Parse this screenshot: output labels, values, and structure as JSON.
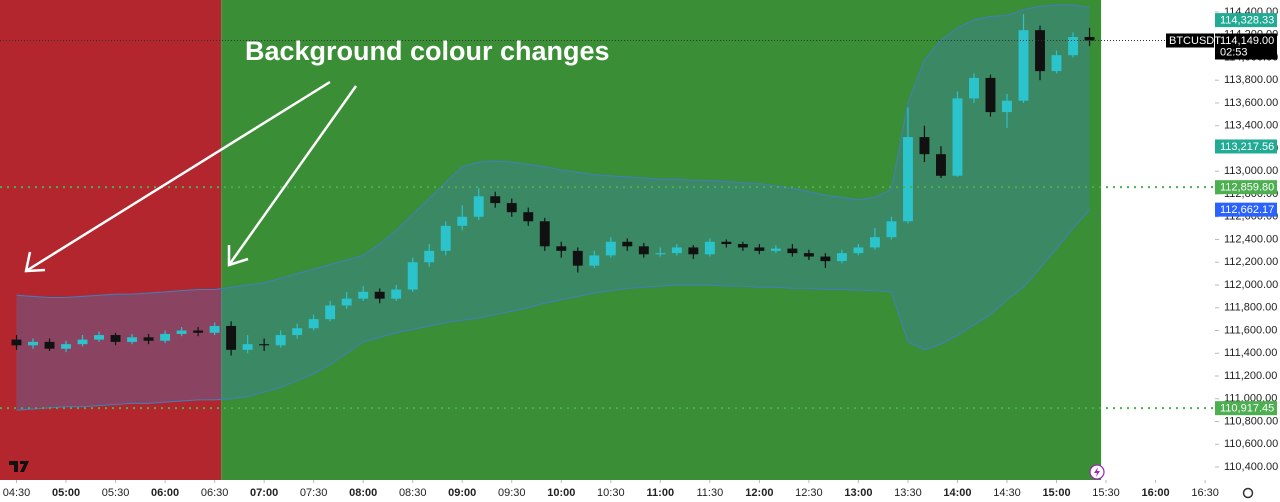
{
  "chart_data": {
    "type": "candlestick",
    "annotation": "Background colour changes",
    "symbol": "BTCUSDT",
    "countdown": "02:53",
    "up_color": "#2bc4cc",
    "down_color": "#111111",
    "xlim": [
      260,
      996
    ],
    "ylim": [
      110286,
      114505
    ],
    "x": [
      270,
      280,
      290,
      300,
      310,
      320,
      330,
      340,
      350,
      360,
      370,
      380,
      390,
      400,
      410,
      420,
      430,
      440,
      450,
      460,
      470,
      480,
      490,
      500,
      510,
      520,
      530,
      540,
      550,
      560,
      570,
      580,
      590,
      600,
      610,
      620,
      630,
      640,
      650,
      660,
      670,
      680,
      690,
      700,
      710,
      720,
      730,
      740,
      750,
      760,
      770,
      780,
      790,
      800,
      810,
      820,
      830,
      840,
      850,
      860,
      870,
      880,
      890,
      900,
      910,
      920
    ],
    "open": [
      111520,
      111470,
      111500,
      111440,
      111480,
      111520,
      111560,
      111500,
      111540,
      111510,
      111570,
      111600,
      111580,
      111640,
      111430,
      111480,
      111470,
      111560,
      111620,
      111700,
      111820,
      111880,
      111940,
      111880,
      111960,
      112200,
      112300,
      112520,
      112600,
      112780,
      112720,
      112640,
      112560,
      112340,
      112300,
      112170,
      112260,
      112380,
      112340,
      112270,
      112280,
      112330,
      112270,
      112380,
      112360,
      112330,
      112300,
      112320,
      112280,
      112250,
      112210,
      112280,
      112330,
      112420,
      112560,
      113300,
      113150,
      112960,
      113640,
      113820,
      113520,
      113620,
      114240,
      113880,
      114020,
      114180
    ],
    "high": [
      111560,
      111530,
      111530,
      111510,
      111560,
      111590,
      111580,
      111570,
      111570,
      111600,
      111630,
      111630,
      111670,
      111680,
      111560,
      111530,
      111600,
      111660,
      111740,
      111860,
      111940,
      111990,
      111970,
      112000,
      112240,
      112360,
      112560,
      112700,
      112850,
      112820,
      112760,
      112680,
      112590,
      112380,
      112330,
      112300,
      112420,
      112410,
      112370,
      112330,
      112360,
      112350,
      112410,
      112400,
      112380,
      112360,
      112350,
      112360,
      112310,
      112280,
      112310,
      112360,
      112500,
      112600,
      113560,
      113400,
      113220,
      113700,
      113860,
      113850,
      113680,
      114380,
      114280,
      114060,
      114220,
      114260
    ],
    "low": [
      111430,
      111440,
      111420,
      111410,
      111460,
      111500,
      111470,
      111480,
      111480,
      111490,
      111550,
      111550,
      111560,
      111380,
      111400,
      111420,
      111450,
      111530,
      111600,
      111680,
      111790,
      111860,
      111840,
      111860,
      111940,
      112160,
      112260,
      112480,
      112570,
      112680,
      112600,
      112520,
      112300,
      112240,
      112110,
      112150,
      112240,
      112300,
      112240,
      112250,
      112260,
      112230,
      112250,
      112330,
      112300,
      112270,
      112280,
      112250,
      112220,
      112150,
      112190,
      112260,
      112310,
      112400,
      112540,
      113080,
      112940,
      112950,
      113600,
      113480,
      113380,
      113600,
      113800,
      113860,
      114000,
      114100
    ],
    "close": [
      111470,
      111500,
      111440,
      111480,
      111520,
      111560,
      111500,
      111540,
      111510,
      111570,
      111600,
      111580,
      111640,
      111430,
      111480,
      111470,
      111560,
      111620,
      111700,
      111820,
      111880,
      111940,
      111880,
      111960,
      112200,
      112300,
      112520,
      112600,
      112780,
      112720,
      112640,
      112560,
      112340,
      112300,
      112170,
      112260,
      112380,
      112340,
      112270,
      112280,
      112330,
      112270,
      112380,
      112360,
      112330,
      112300,
      112320,
      112280,
      112250,
      112210,
      112280,
      112330,
      112420,
      112560,
      113300,
      113150,
      112960,
      113640,
      113820,
      113520,
      113620,
      114240,
      113880,
      114020,
      114180,
      114149
    ],
    "bands": {
      "color": "#3f7fbf",
      "upper": [
        111910,
        111900,
        111890,
        111890,
        111900,
        111910,
        111920,
        111920,
        111930,
        111940,
        111950,
        111960,
        111960,
        111980,
        112000,
        112020,
        112060,
        112100,
        112140,
        112180,
        112220,
        112260,
        112360,
        112480,
        112620,
        112760,
        112900,
        113040,
        113080,
        113090,
        113080,
        113060,
        113040,
        113010,
        112990,
        112970,
        112960,
        112950,
        112940,
        112930,
        112930,
        112920,
        112920,
        112910,
        112900,
        112890,
        112870,
        112850,
        112820,
        112790,
        112770,
        112750,
        112770,
        112840,
        113600,
        113980,
        114150,
        114260,
        114330,
        114360,
        114370,
        114420,
        114450,
        114460,
        114460,
        114440
      ],
      "lower": [
        110900,
        110910,
        110920,
        110930,
        110930,
        110940,
        110950,
        110960,
        110960,
        110970,
        110980,
        110990,
        110990,
        111000,
        111020,
        111060,
        111100,
        111160,
        111220,
        111300,
        111400,
        111500,
        111540,
        111580,
        111610,
        111640,
        111670,
        111690,
        111710,
        111740,
        111770,
        111800,
        111840,
        111870,
        111900,
        111930,
        111950,
        111970,
        111980,
        111990,
        112000,
        112000,
        112000,
        111990,
        111990,
        111980,
        111980,
        111970,
        111970,
        111960,
        111960,
        111955,
        111950,
        111940,
        111500,
        111430,
        111480,
        111560,
        111650,
        111740,
        111870,
        111980,
        112150,
        112320,
        112500,
        112660
      ]
    },
    "background_regions": [
      {
        "from": 260,
        "to": 394,
        "color": "#b3262e"
      },
      {
        "from": 394,
        "to": 927,
        "color": "#3a8e35"
      }
    ],
    "xticks": [
      {
        "value": 270,
        "label": "04:30"
      },
      {
        "value": 300,
        "label": "05:00"
      },
      {
        "value": 330,
        "label": "05:30"
      },
      {
        "value": 360,
        "label": "06:00"
      },
      {
        "value": 390,
        "label": "06:30"
      },
      {
        "value": 420,
        "label": "07:00"
      },
      {
        "value": 450,
        "label": "07:30"
      },
      {
        "value": 480,
        "label": "08:00"
      },
      {
        "value": 510,
        "label": "08:30"
      },
      {
        "value": 540,
        "label": "09:00"
      },
      {
        "value": 570,
        "label": "09:30"
      },
      {
        "value": 600,
        "label": "10:00"
      },
      {
        "value": 630,
        "label": "10:30"
      },
      {
        "value": 660,
        "label": "11:00"
      },
      {
        "value": 690,
        "label": "11:30"
      },
      {
        "value": 720,
        "label": "12:00"
      },
      {
        "value": 750,
        "label": "12:30"
      },
      {
        "value": 780,
        "label": "13:00"
      },
      {
        "value": 810,
        "label": "13:30"
      },
      {
        "value": 840,
        "label": "14:00"
      },
      {
        "value": 870,
        "label": "14:30"
      },
      {
        "value": 900,
        "label": "15:00"
      },
      {
        "value": 930,
        "label": "15:30"
      },
      {
        "value": 960,
        "label": "16:00"
      },
      {
        "value": 990,
        "label": "16:30"
      }
    ],
    "yticks": [
      {
        "value": 110400,
        "label": "110,400.00"
      },
      {
        "value": 110600,
        "label": "110,600.00"
      },
      {
        "value": 110800,
        "label": "110,800.00"
      },
      {
        "value": 111000,
        "label": "111,000.00"
      },
      {
        "value": 111200,
        "label": "111,200.00"
      },
      {
        "value": 111400,
        "label": "111,400.00"
      },
      {
        "value": 111600,
        "label": "111,600.00"
      },
      {
        "value": 111800,
        "label": "111,800.00"
      },
      {
        "value": 112000,
        "label": "112,000.00"
      },
      {
        "value": 112200,
        "label": "112,200.00"
      },
      {
        "value": 112400,
        "label": "112,400.00"
      },
      {
        "value": 112600,
        "label": "112,600.00"
      },
      {
        "value": 112800,
        "label": "112,800.00"
      },
      {
        "value": 113000,
        "label": "113,000.00"
      },
      {
        "value": 113200,
        "label": "113,200.00"
      },
      {
        "value": 113400,
        "label": "113,400.00"
      },
      {
        "value": 113600,
        "label": "113,600.00"
      },
      {
        "value": 113800,
        "label": "113,800.00"
      },
      {
        "value": 114000,
        "label": "114,000.00"
      },
      {
        "value": 114200,
        "label": "114,200.00"
      },
      {
        "value": 114400,
        "label": "114,400.00"
      }
    ],
    "price_tags": [
      {
        "value": 114328.33,
        "label": "114,328.33",
        "color": "#22ab94",
        "line": false
      },
      {
        "value": 113217.56,
        "label": "113,217.56",
        "color": "#22ab94",
        "line": false
      },
      {
        "value": 112859.8,
        "label": "112,859.80",
        "color": "#4caf50",
        "line": true
      },
      {
        "value": 112662.17,
        "label": "112,662.17",
        "color": "#2962ff",
        "line": false
      },
      {
        "value": 110917.45,
        "label": "110,917.45",
        "color": "#4caf50",
        "line": true
      }
    ],
    "last_price": {
      "value": 114149,
      "label": "114,149.00",
      "color": "#000000"
    }
  }
}
